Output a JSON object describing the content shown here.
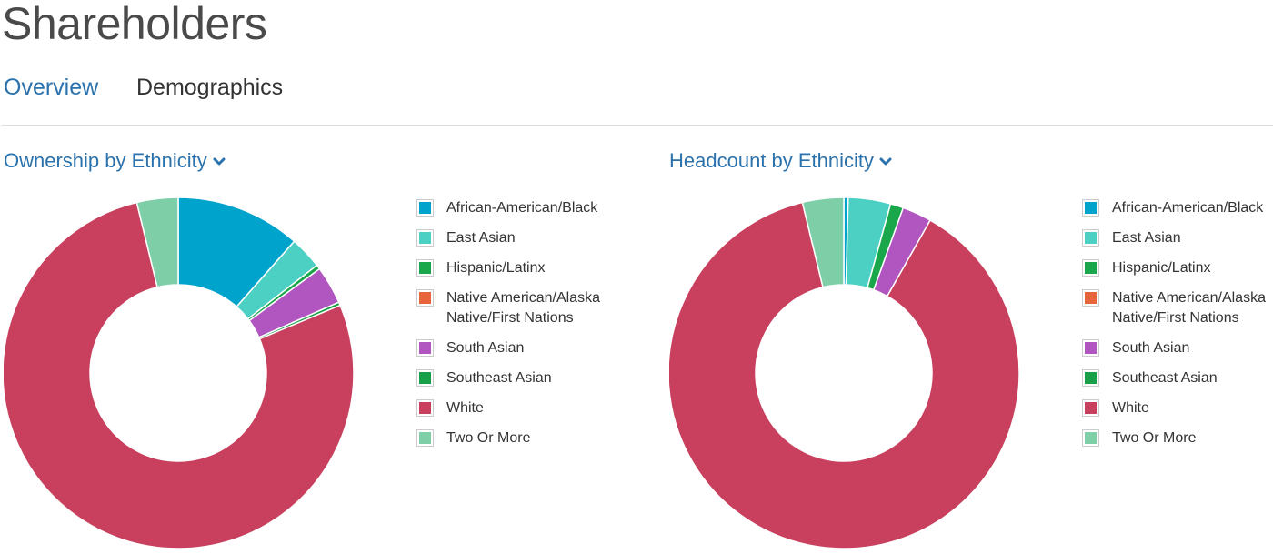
{
  "page": {
    "title": "Shareholders"
  },
  "tabs": [
    {
      "label": "Overview",
      "active": true
    },
    {
      "label": "Demographics",
      "active": false
    }
  ],
  "legend_labels": [
    "African-American/Black",
    "East Asian",
    "Hispanic/Latinx",
    "Native American/Alaska Native/First Nations",
    "South Asian",
    "Southeast Asian",
    "White",
    "Two Or More"
  ],
  "colors": {
    "accent": "#2b72ad",
    "African-American/Black": "#00a3cc",
    "East Asian": "#4dd0c4",
    "Hispanic/Latinx": "#1aa64a",
    "Native American/Alaska Native/First Nations": "#e8643c",
    "South Asian": "#b155c0",
    "Southeast Asian": "#17a048",
    "White": "#c8405e",
    "Two Or More": "#7ecfa8"
  },
  "chart_data": [
    {
      "type": "pie",
      "title": "Ownership by Ethnicity",
      "unit": "percent",
      "donut": true,
      "legend": "right",
      "slices": [
        {
          "label": "African-American/Black",
          "value": 11.5
        },
        {
          "label": "East Asian",
          "value": 3.0
        },
        {
          "label": "Hispanic/Latinx",
          "value": 0.4
        },
        {
          "label": "Native American/Alaska Native/First Nations",
          "value": 0.0
        },
        {
          "label": "South Asian",
          "value": 3.5
        },
        {
          "label": "Southeast Asian",
          "value": 0.3
        },
        {
          "label": "White",
          "value": 77.5
        },
        {
          "label": "Two Or More",
          "value": 3.8
        }
      ]
    },
    {
      "type": "pie",
      "title": "Headcount by Ethnicity",
      "unit": "percent",
      "donut": true,
      "legend": "right",
      "slices": [
        {
          "label": "African-American/Black",
          "value": 0.4
        },
        {
          "label": "East Asian",
          "value": 3.9
        },
        {
          "label": "Hispanic/Latinx",
          "value": 1.2
        },
        {
          "label": "Native American/Alaska Native/First Nations",
          "value": 0.0
        },
        {
          "label": "South Asian",
          "value": 2.7
        },
        {
          "label": "Southeast Asian",
          "value": 0.0
        },
        {
          "label": "White",
          "value": 88.0
        },
        {
          "label": "Two Or More",
          "value": 3.8
        }
      ]
    }
  ]
}
